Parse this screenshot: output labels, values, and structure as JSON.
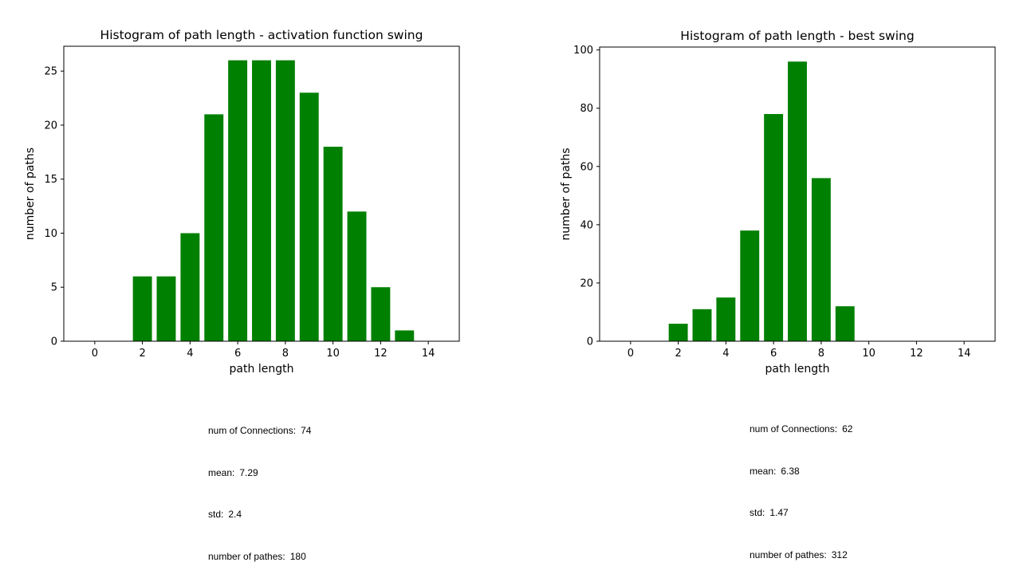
{
  "chart_data": [
    {
      "type": "bar",
      "title": "Histogram of path length - activation function swing",
      "xlabel": "path length",
      "ylabel": "number of paths",
      "xlim": [
        -1.3,
        15.3
      ],
      "ylim": [
        0,
        27.3
      ],
      "xticks": [
        0,
        2,
        4,
        6,
        8,
        10,
        12,
        14
      ],
      "yticks": [
        0,
        5,
        10,
        15,
        20,
        25
      ],
      "x": [
        2,
        3,
        4,
        5,
        6,
        7,
        8,
        9,
        10,
        11,
        12,
        13
      ],
      "values": [
        6,
        6,
        10,
        21,
        26,
        26,
        26,
        23,
        18,
        12,
        5,
        1
      ],
      "color": "#008000",
      "grid": false
    },
    {
      "type": "bar",
      "title": "Histogram of path length - best swing",
      "xlabel": "path length",
      "ylabel": "number of paths",
      "xlim": [
        -1.3,
        15.3
      ],
      "ylim": [
        0,
        101
      ],
      "xticks": [
        0,
        2,
        4,
        6,
        8,
        10,
        12,
        14
      ],
      "yticks": [
        0,
        20,
        40,
        60,
        80,
        100
      ],
      "x": [
        2,
        3,
        4,
        5,
        6,
        7,
        8,
        9
      ],
      "values": [
        6,
        11,
        15,
        38,
        78,
        96,
        56,
        12
      ],
      "color": "#008000",
      "grid": false
    }
  ],
  "stats": [
    {
      "rows": [
        {
          "label": "num of Connections:",
          "value": "74"
        },
        {
          "label": "mean:",
          "value": "7.29"
        },
        {
          "label": "std:",
          "value": "2.4"
        },
        {
          "label": "number of pathes:",
          "value": "180"
        }
      ]
    },
    {
      "rows": [
        {
          "label": "num of Connections:",
          "value": "62"
        },
        {
          "label": "mean:",
          "value": "6.38"
        },
        {
          "label": "std:",
          "value": "1.47"
        },
        {
          "label": "number of pathes:",
          "value": "312"
        }
      ]
    }
  ]
}
